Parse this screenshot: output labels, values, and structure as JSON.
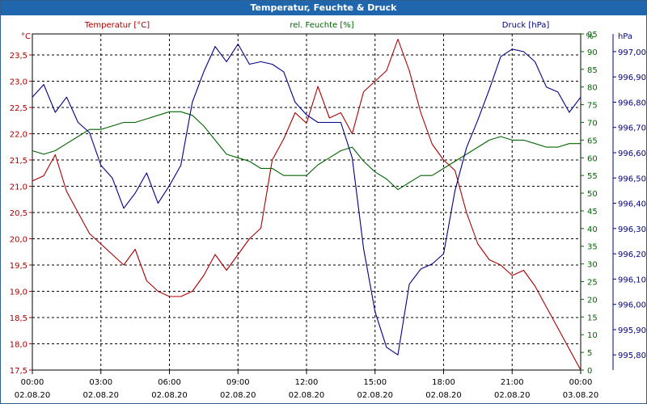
{
  "window": {
    "title": "Temperatur, Feuchte & Druck"
  },
  "colors": {
    "temperature": "#aa0000",
    "humidity": "#006400",
    "pressure": "#000088",
    "grid": "#000000",
    "titlebar": "#1f66ad"
  },
  "chart_data": {
    "type": "line",
    "title": "Temperatur, Feuchte & Druck",
    "grid": true,
    "x_ticks": [
      {
        "time": "00:00",
        "date": "02.08.20"
      },
      {
        "time": "03:00",
        "date": "02.08.20"
      },
      {
        "time": "06:00",
        "date": "02.08.20"
      },
      {
        "time": "09:00",
        "date": "02.08.20"
      },
      {
        "time": "12:00",
        "date": "02.08.20"
      },
      {
        "time": "15:00",
        "date": "02.08.20"
      },
      {
        "time": "18:00",
        "date": "02.08.20"
      },
      {
        "time": "21:00",
        "date": "02.08.20"
      },
      {
        "time": "00:00",
        "date": "03.08.20"
      }
    ],
    "x_range_hours": [
      0,
      24
    ],
    "axes": {
      "temperature": {
        "label": "Temperatur [°C]",
        "unit": "°C",
        "range": [
          17.5,
          23.9
        ],
        "ticks": [
          "17,5",
          "18,0",
          "18,5",
          "19,0",
          "19,5",
          "20,0",
          "20,5",
          "21,0",
          "21,5",
          "22,0",
          "22,5",
          "23,0",
          "23,5"
        ]
      },
      "humidity": {
        "label": "rel. Feuchte [%]",
        "unit": "%",
        "range": [
          0,
          95
        ],
        "ticks": [
          "0",
          "5",
          "10",
          "15",
          "20",
          "25",
          "30",
          "35",
          "40",
          "45",
          "50",
          "55",
          "60",
          "65",
          "70",
          "75",
          "80",
          "85",
          "90",
          "95"
        ]
      },
      "pressure": {
        "label": "Druck [hPa]",
        "unit": "hPa",
        "range": [
          995.74,
          997.07
        ],
        "ticks": [
          "995,80",
          "995,90",
          "996,00",
          "996,10",
          "996,20",
          "996,30",
          "996,40",
          "996,50",
          "996,60",
          "996,70",
          "996,80",
          "996,90",
          "997,00"
        ]
      }
    },
    "series": [
      {
        "name": "Temperatur [°C]",
        "axis": "temperature",
        "x": [
          0,
          0.5,
          1,
          1.5,
          2,
          2.5,
          3,
          3.5,
          4,
          4.5,
          5,
          5.5,
          6,
          6.5,
          7,
          7.5,
          8,
          8.5,
          9,
          9.5,
          10,
          10.5,
          11,
          11.5,
          12,
          12.5,
          13,
          13.5,
          14,
          14.5,
          15,
          15.5,
          16,
          16.5,
          17,
          17.5,
          18,
          18.5,
          19,
          19.5,
          20,
          20.5,
          21,
          21.5,
          22,
          22.5,
          23,
          23.5,
          24
        ],
        "values": [
          21.1,
          21.2,
          21.6,
          20.9,
          20.5,
          20.1,
          19.9,
          19.7,
          19.5,
          19.8,
          19.2,
          19.0,
          18.9,
          18.9,
          19.0,
          19.3,
          19.7,
          19.4,
          19.7,
          20.0,
          20.2,
          21.5,
          21.9,
          22.4,
          22.2,
          22.9,
          22.3,
          22.4,
          22.0,
          22.8,
          23.0,
          23.2,
          23.8,
          23.2,
          22.4,
          21.8,
          21.5,
          21.3,
          20.5,
          19.9,
          19.6,
          19.5,
          19.3,
          19.4,
          19.1,
          18.7,
          18.3,
          17.9,
          17.5
        ]
      },
      {
        "name": "rel. Feuchte [%]",
        "axis": "humidity",
        "x": [
          0,
          0.5,
          1,
          1.5,
          2,
          2.5,
          3,
          3.5,
          4,
          4.5,
          5,
          5.5,
          6,
          6.5,
          7,
          7.5,
          8,
          8.5,
          9,
          9.5,
          10,
          10.5,
          11,
          11.5,
          12,
          12.5,
          13,
          13.5,
          14,
          14.5,
          15,
          15.5,
          16,
          16.5,
          17,
          17.5,
          18,
          18.5,
          19,
          19.5,
          20,
          20.5,
          21,
          21.5,
          22,
          22.5,
          23,
          23.5,
          24
        ],
        "values": [
          62,
          61,
          62,
          64,
          66,
          68,
          68,
          69,
          70,
          70,
          71,
          72,
          73,
          73,
          72,
          69,
          65,
          61,
          60,
          59,
          57,
          57,
          55,
          55,
          55,
          58,
          60,
          62,
          63,
          59,
          56,
          54,
          51,
          53,
          55,
          55,
          57,
          59,
          61,
          63,
          65,
          66,
          65,
          65,
          64,
          63,
          63,
          64,
          64
        ]
      },
      {
        "name": "Druck [hPa]",
        "axis": "pressure",
        "x": [
          0,
          0.5,
          1,
          1.5,
          2,
          2.5,
          3,
          3.5,
          4,
          4.5,
          5,
          5.5,
          6,
          6.5,
          7,
          7.5,
          8,
          8.5,
          9,
          9.5,
          10,
          10.5,
          11,
          11.5,
          12,
          12.5,
          13,
          13.5,
          14,
          14.5,
          15,
          15.5,
          16,
          16.5,
          17,
          17.5,
          18,
          18.5,
          19,
          19.5,
          20,
          20.5,
          21,
          21.5,
          22,
          22.5,
          23,
          23.5,
          24
        ],
        "values": [
          996.82,
          996.87,
          996.76,
          996.82,
          996.72,
          996.68,
          996.55,
          996.5,
          996.38,
          996.44,
          996.52,
          996.4,
          996.47,
          996.55,
          996.8,
          996.92,
          997.02,
          996.96,
          997.03,
          996.95,
          996.96,
          996.95,
          996.92,
          996.8,
          996.75,
          996.72,
          996.72,
          996.72,
          996.58,
          996.22,
          995.97,
          995.83,
          995.8,
          996.08,
          996.14,
          996.16,
          996.2,
          996.45,
          996.62,
          996.73,
          996.85,
          996.98,
          997.01,
          997.0,
          996.96,
          996.86,
          996.84,
          996.76,
          996.82
        ]
      }
    ]
  }
}
